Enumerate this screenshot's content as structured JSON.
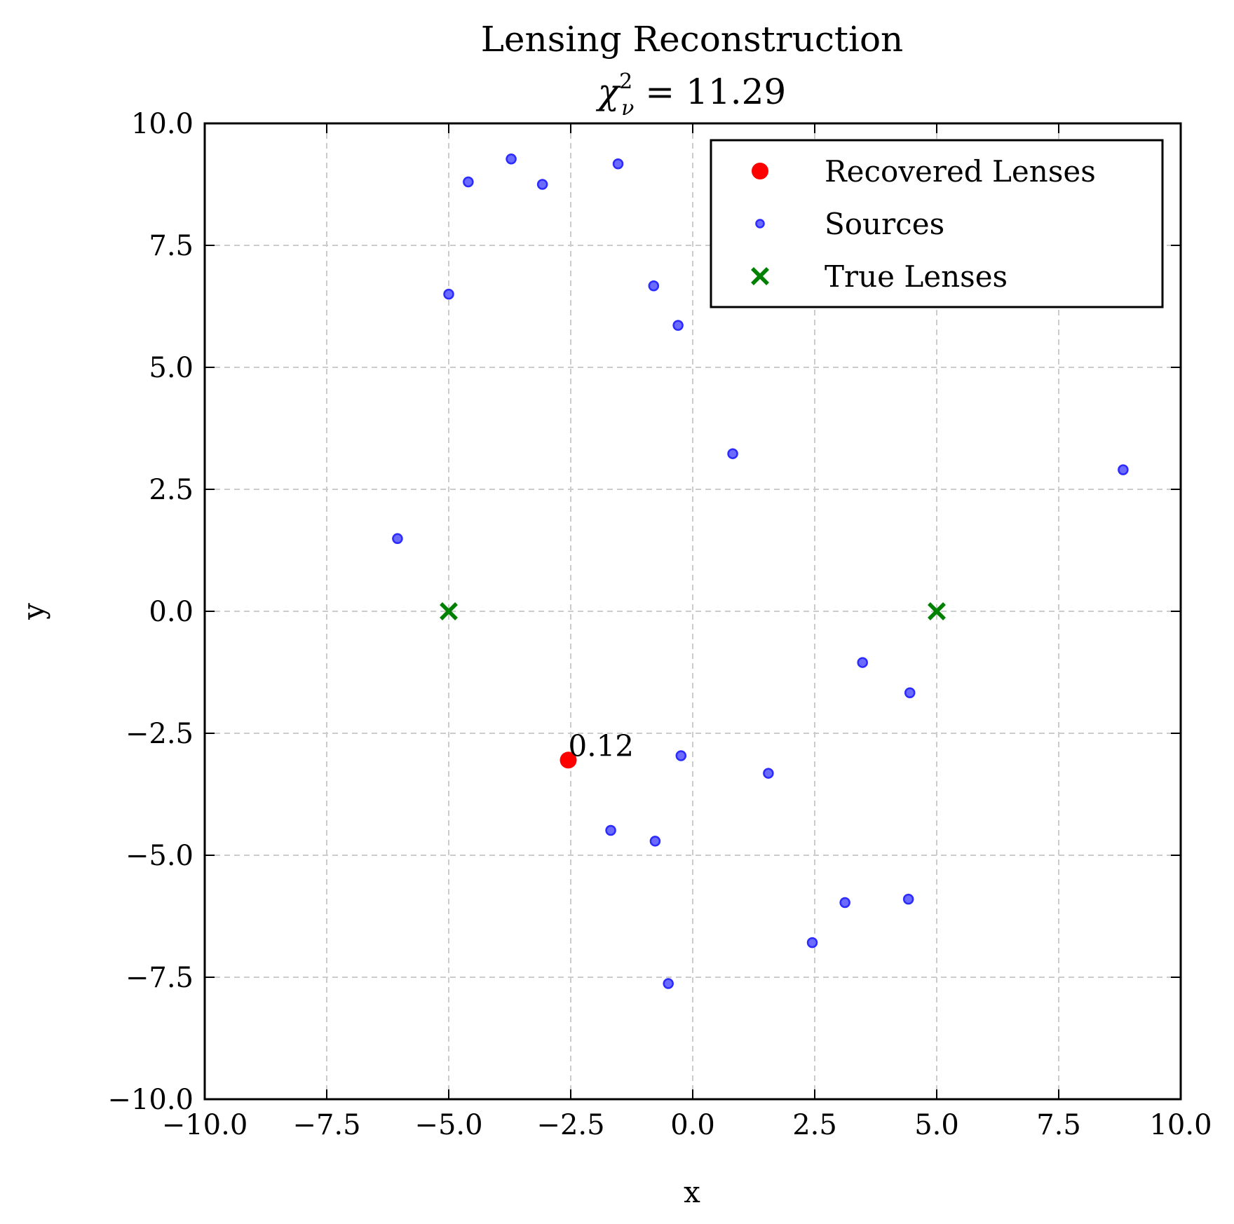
{
  "chart_data": {
    "type": "scatter",
    "title": "Lensing Reconstruction",
    "subtitle": {
      "symbol": "χ",
      "superscript": "2",
      "subscript": "ν",
      "text": " = 11.29"
    },
    "xlabel": "x",
    "ylabel": "y",
    "xlim": [
      -10,
      10
    ],
    "ylim": [
      -10,
      10
    ],
    "xticks": [
      -10.0,
      -7.5,
      -5.0,
      -2.5,
      0.0,
      2.5,
      5.0,
      7.5,
      10.0
    ],
    "yticks": [
      -10.0,
      -7.5,
      -5.0,
      -2.5,
      0.0,
      2.5,
      5.0,
      7.5,
      10.0
    ],
    "xtick_labels": [
      "−10.0",
      "−7.5",
      "−5.0",
      "−2.5",
      "0.0",
      "2.5",
      "5.0",
      "7.5",
      "10.0"
    ],
    "ytick_labels": [
      "−10.0",
      "−7.5",
      "−5.0",
      "−2.5",
      "0.0",
      "2.5",
      "5.0",
      "7.5",
      "10.0"
    ],
    "grid": true,
    "legend_position": "top-right",
    "series": [
      {
        "name": "Recovered Lenses",
        "marker": "circle",
        "color": "#ff0000",
        "points": [
          {
            "x": -2.55,
            "y": -3.05,
            "label": "0.12"
          }
        ]
      },
      {
        "name": "Sources",
        "marker": "small-circle",
        "color": "#6b6bff",
        "edge_color": "#2b2bff",
        "points": [
          {
            "x": -4.6,
            "y": 8.8
          },
          {
            "x": -3.72,
            "y": 9.27
          },
          {
            "x": -3.08,
            "y": 8.75
          },
          {
            "x": -1.53,
            "y": 9.17
          },
          {
            "x": -5.0,
            "y": 6.5
          },
          {
            "x": -0.8,
            "y": 6.67
          },
          {
            "x": -0.3,
            "y": 5.86
          },
          {
            "x": 0.82,
            "y": 3.23
          },
          {
            "x": -6.05,
            "y": 1.49
          },
          {
            "x": 8.82,
            "y": 2.9
          },
          {
            "x": 3.48,
            "y": -1.05
          },
          {
            "x": 4.45,
            "y": -1.67
          },
          {
            "x": -0.24,
            "y": -2.96
          },
          {
            "x": 1.55,
            "y": -3.32
          },
          {
            "x": -1.68,
            "y": -4.49
          },
          {
            "x": -0.77,
            "y": -4.71
          },
          {
            "x": 3.12,
            "y": -5.97
          },
          {
            "x": 4.42,
            "y": -5.9
          },
          {
            "x": 2.45,
            "y": -6.79
          },
          {
            "x": -0.5,
            "y": -7.63
          }
        ]
      },
      {
        "name": "True Lenses",
        "marker": "x",
        "color": "#008000",
        "points": [
          {
            "x": -5.0,
            "y": 0.0
          },
          {
            "x": 5.0,
            "y": 0.0
          }
        ]
      }
    ]
  }
}
